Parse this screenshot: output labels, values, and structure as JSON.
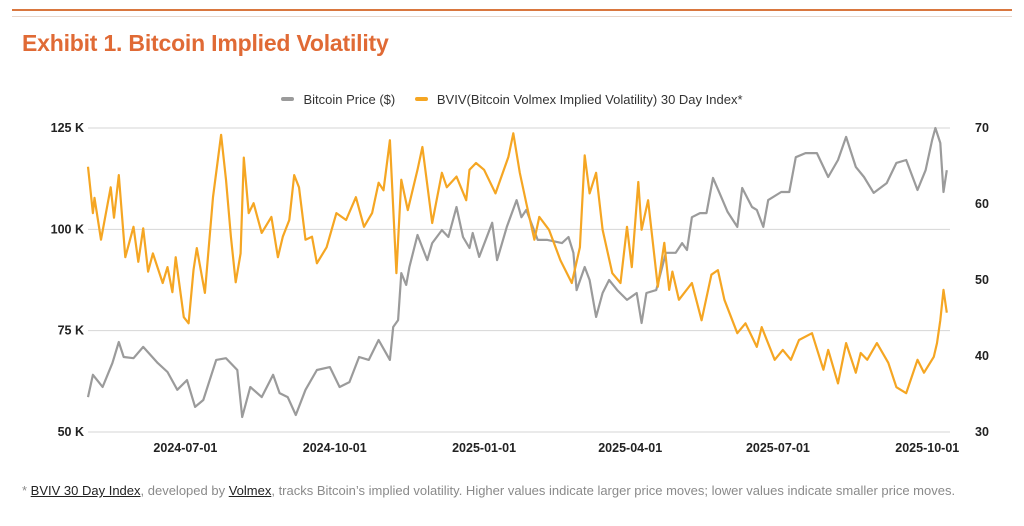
{
  "title": "Exhibit 1. Bitcoin Implied Volatility",
  "footnote": {
    "prefix": "* ",
    "link1": "BVIV 30 Day Index",
    "mid": ", developed by ",
    "link2": "Volmex",
    "rest": ", tracks Bitcoin’s implied volatility. Higher values indicate larger price moves; lower values indicate smaller price moves."
  },
  "chart_data": {
    "type": "line",
    "title": "Exhibit 1. Bitcoin Implied Volatility",
    "legend_position": "top",
    "grid": "horizontal",
    "xlim": [
      "2024-05-02",
      "2025-10-15"
    ],
    "x_ticks": [
      "2024-07-01",
      "2024-10-01",
      "2025-01-01",
      "2025-04-01",
      "2025-07-01",
      "2025-10-01"
    ],
    "y_left": {
      "lim": [
        50000,
        125000
      ],
      "ticks": [
        50000,
        75000,
        100000,
        125000
      ],
      "tick_labels": [
        "50 K",
        "75 K",
        "100 K",
        "125 K"
      ]
    },
    "y_right": {
      "lim": [
        30,
        70
      ],
      "ticks": [
        30,
        40,
        50,
        60,
        70
      ],
      "tick_labels": [
        "30",
        "40",
        "50",
        "60",
        "70"
      ]
    },
    "series": [
      {
        "name": "Bitcoin Price ($)",
        "axis": "left",
        "color": "#9b9b9b",
        "x": [
          "2024-05-02",
          "2024-05-05",
          "2024-05-11",
          "2024-05-17",
          "2024-05-21",
          "2024-05-24",
          "2024-05-30",
          "2024-06-05",
          "2024-06-14",
          "2024-06-20",
          "2024-06-26",
          "2024-07-02",
          "2024-07-07",
          "2024-07-12",
          "2024-07-20",
          "2024-07-26",
          "2024-08-02",
          "2024-08-05",
          "2024-08-10",
          "2024-08-17",
          "2024-08-24",
          "2024-08-28",
          "2024-09-02",
          "2024-09-07",
          "2024-09-13",
          "2024-09-20",
          "2024-09-28",
          "2024-10-04",
          "2024-10-10",
          "2024-10-16",
          "2024-10-22",
          "2024-10-28",
          "2024-11-04",
          "2024-11-06",
          "2024-11-09",
          "2024-11-11",
          "2024-11-14",
          "2024-11-16",
          "2024-11-21",
          "2024-11-27",
          "2024-11-30",
          "2024-12-06",
          "2024-12-10",
          "2024-12-15",
          "2024-12-19",
          "2024-12-23",
          "2024-12-25",
          "2024-12-29",
          "2025-01-06",
          "2025-01-09",
          "2025-01-15",
          "2025-01-21",
          "2025-01-24",
          "2025-01-27",
          "2025-02-03",
          "2025-02-09",
          "2025-02-18",
          "2025-02-22",
          "2025-02-25",
          "2025-02-27",
          "2025-03-04",
          "2025-03-07",
          "2025-03-11",
          "2025-03-15",
          "2025-03-19",
          "2025-03-24",
          "2025-03-30",
          "2025-04-05",
          "2025-04-08",
          "2025-04-11",
          "2025-04-17",
          "2025-04-23",
          "2025-04-29",
          "2025-05-03",
          "2025-05-06",
          "2025-05-09",
          "2025-05-14",
          "2025-05-18",
          "2025-05-22",
          "2025-05-26",
          "2025-05-31",
          "2025-06-06",
          "2025-06-09",
          "2025-06-15",
          "2025-06-18",
          "2025-06-22",
          "2025-06-25",
          "2025-07-03",
          "2025-07-08",
          "2025-07-12",
          "2025-07-18",
          "2025-07-25",
          "2025-08-01",
          "2025-08-07",
          "2025-08-12",
          "2025-08-18",
          "2025-08-23",
          "2025-08-29",
          "2025-09-06",
          "2025-09-12",
          "2025-09-18",
          "2025-09-25",
          "2025-09-30",
          "2025-10-04",
          "2025-10-06",
          "2025-10-09",
          "2025-10-11",
          "2025-10-13"
        ],
        "values": [
          58600,
          64100,
          61100,
          67000,
          72200,
          68500,
          68200,
          71000,
          67000,
          64800,
          60400,
          62800,
          56200,
          57900,
          67800,
          68200,
          65300,
          53700,
          61100,
          58600,
          64100,
          59600,
          58600,
          54200,
          60400,
          65300,
          66000,
          61100,
          62300,
          68500,
          67800,
          72700,
          67800,
          75900,
          77600,
          89200,
          86300,
          90700,
          98600,
          92400,
          96600,
          99800,
          98100,
          105500,
          98100,
          95400,
          99100,
          93200,
          101600,
          92400,
          100600,
          107200,
          103000,
          104800,
          97400,
          97400,
          96600,
          98100,
          94200,
          85000,
          90700,
          87500,
          78400,
          84300,
          87500,
          85000,
          82600,
          84300,
          76900,
          84300,
          85000,
          94200,
          94200,
          96600,
          94900,
          103000,
          104000,
          104000,
          112700,
          109000,
          104300,
          100600,
          110200,
          105500,
          104800,
          100600,
          107200,
          109200,
          109200,
          117800,
          118800,
          118800,
          112900,
          117100,
          122800,
          115400,
          112900,
          109000,
          111400,
          116400,
          117100,
          109700,
          114600,
          122000,
          125000,
          121300,
          109200,
          114600
        ]
      },
      {
        "name": "BVIV(Bitcoin Volmex Implied Volatility) 30 Day Index*",
        "axis": "right",
        "color": "#f5a623",
        "x": [
          "2024-05-02",
          "2024-05-05",
          "2024-05-06",
          "2024-05-10",
          "2024-05-16",
          "2024-05-18",
          "2024-05-21",
          "2024-05-25",
          "2024-05-30",
          "2024-06-02",
          "2024-06-05",
          "2024-06-08",
          "2024-06-11",
          "2024-06-17",
          "2024-06-20",
          "2024-06-23",
          "2024-06-25",
          "2024-06-30",
          "2024-07-03",
          "2024-07-06",
          "2024-07-08",
          "2024-07-13",
          "2024-07-18",
          "2024-07-23",
          "2024-07-26",
          "2024-07-29",
          "2024-08-01",
          "2024-08-04",
          "2024-08-06",
          "2024-08-09",
          "2024-08-12",
          "2024-08-17",
          "2024-08-23",
          "2024-08-27",
          "2024-08-30",
          "2024-09-03",
          "2024-09-06",
          "2024-09-09",
          "2024-09-13",
          "2024-09-17",
          "2024-09-20",
          "2024-09-26",
          "2024-10-02",
          "2024-10-08",
          "2024-10-14",
          "2024-10-19",
          "2024-10-24",
          "2024-10-28",
          "2024-10-31",
          "2024-11-04",
          "2024-11-08",
          "2024-11-11",
          "2024-11-15",
          "2024-11-21",
          "2024-11-24",
          "2024-11-30",
          "2024-12-06",
          "2024-12-09",
          "2024-12-15",
          "2024-12-21",
          "2024-12-23",
          "2024-12-27",
          "2025-01-01",
          "2025-01-08",
          "2025-01-16",
          "2025-01-19",
          "2025-01-23",
          "2025-01-27",
          "2025-02-01",
          "2025-02-04",
          "2025-02-10",
          "2025-02-17",
          "2025-02-24",
          "2025-03-01",
          "2025-03-04",
          "2025-03-07",
          "2025-03-11",
          "2025-03-15",
          "2025-03-21",
          "2025-03-26",
          "2025-03-30",
          "2025-04-02",
          "2025-04-06",
          "2025-04-08",
          "2025-04-12",
          "2025-04-18",
          "2025-04-22",
          "2025-04-25",
          "2025-04-27",
          "2025-05-01",
          "2025-05-09",
          "2025-05-15",
          "2025-05-21",
          "2025-05-25",
          "2025-05-29",
          "2025-06-06",
          "2025-06-11",
          "2025-06-18",
          "2025-06-21",
          "2025-06-29",
          "2025-07-04",
          "2025-07-09",
          "2025-07-14",
          "2025-07-22",
          "2025-07-29",
          "2025-08-01",
          "2025-08-07",
          "2025-08-12",
          "2025-08-18",
          "2025-08-21",
          "2025-08-25",
          "2025-08-31",
          "2025-09-07",
          "2025-09-12",
          "2025-09-18",
          "2025-09-25",
          "2025-09-29",
          "2025-10-05",
          "2025-10-07",
          "2025-10-09",
          "2025-10-11",
          "2025-10-13"
        ],
        "values": [
          64.9,
          58.8,
          60.8,
          55.3,
          62.2,
          58.2,
          63.8,
          53.0,
          57.0,
          52.4,
          56.8,
          51.1,
          53.5,
          49.6,
          51.7,
          48.4,
          53.0,
          45.1,
          44.3,
          51.3,
          54.2,
          48.3,
          60.9,
          69.1,
          63.2,
          55.7,
          49.7,
          53.5,
          66.1,
          58.8,
          60.1,
          56.2,
          58.3,
          53.0,
          55.7,
          57.9,
          63.8,
          62.2,
          55.3,
          55.7,
          52.2,
          54.3,
          58.8,
          57.9,
          60.9,
          57.0,
          58.8,
          62.8,
          61.8,
          68.4,
          50.9,
          63.2,
          59.2,
          64.5,
          67.5,
          57.5,
          64.1,
          62.2,
          63.6,
          60.5,
          64.5,
          65.4,
          64.5,
          61.4,
          66.2,
          69.3,
          64.1,
          60.1,
          55.3,
          58.3,
          56.6,
          52.6,
          49.6,
          54.3,
          66.4,
          61.4,
          64.1,
          56.6,
          50.9,
          49.6,
          57.0,
          51.7,
          62.9,
          56.6,
          60.5,
          49.1,
          54.9,
          48.7,
          51.1,
          47.4,
          49.6,
          44.7,
          50.7,
          51.3,
          47.4,
          43.0,
          44.3,
          41.2,
          43.8,
          39.5,
          40.8,
          39.5,
          42.1,
          43.0,
          38.2,
          40.8,
          36.4,
          41.7,
          37.8,
          40.4,
          39.5,
          41.7,
          39.1,
          35.9,
          35.1,
          39.5,
          37.8,
          39.9,
          41.7,
          44.7,
          48.7,
          45.7
        ]
      }
    ]
  }
}
